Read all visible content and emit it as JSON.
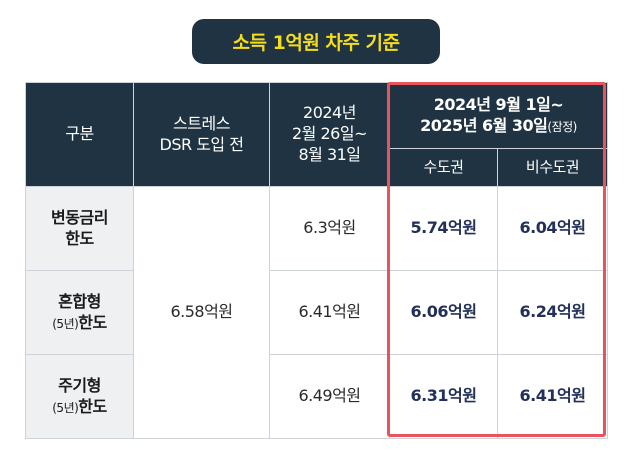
{
  "title": "소득 1억원 차주 기준",
  "header": {
    "category": "구분",
    "col_before_line1": "스트레스",
    "col_before_line2": "DSR 도입 전",
    "col_2024_line1": "2024년",
    "col_2024_line2": "2월 26일~",
    "col_2024_line3": "8월 31일",
    "col_new_line1": "2024년 9월 1일~",
    "col_new_line2_main": "2025년 6월 30일",
    "col_new_line2_note": "(잠정)",
    "sub_capital": "수도권",
    "sub_noncapital": "비수도권"
  },
  "rows": [
    {
      "label_line1": "변동금리",
      "label_note": "",
      "label_line2": "한도",
      "period2": "6.3억원",
      "capital": "5.74억원",
      "noncapital": "6.04억원"
    },
    {
      "label_line1": "혼합형",
      "label_note": "(5년)",
      "label_line2": "한도",
      "period2": "6.41억원",
      "capital": "6.06억원",
      "noncapital": "6.24억원"
    },
    {
      "label_line1": "주기형",
      "label_note": "(5년)",
      "label_line2": "한도",
      "period2": "6.49억원",
      "capital": "6.31억원",
      "noncapital": "6.41억원"
    }
  ],
  "before_value": "6.58억원",
  "colors": {
    "header_bg": "#1f3342",
    "title_text": "#f5dd1c",
    "highlight_border": "#e8535e",
    "highlight_text": "#22305a"
  }
}
